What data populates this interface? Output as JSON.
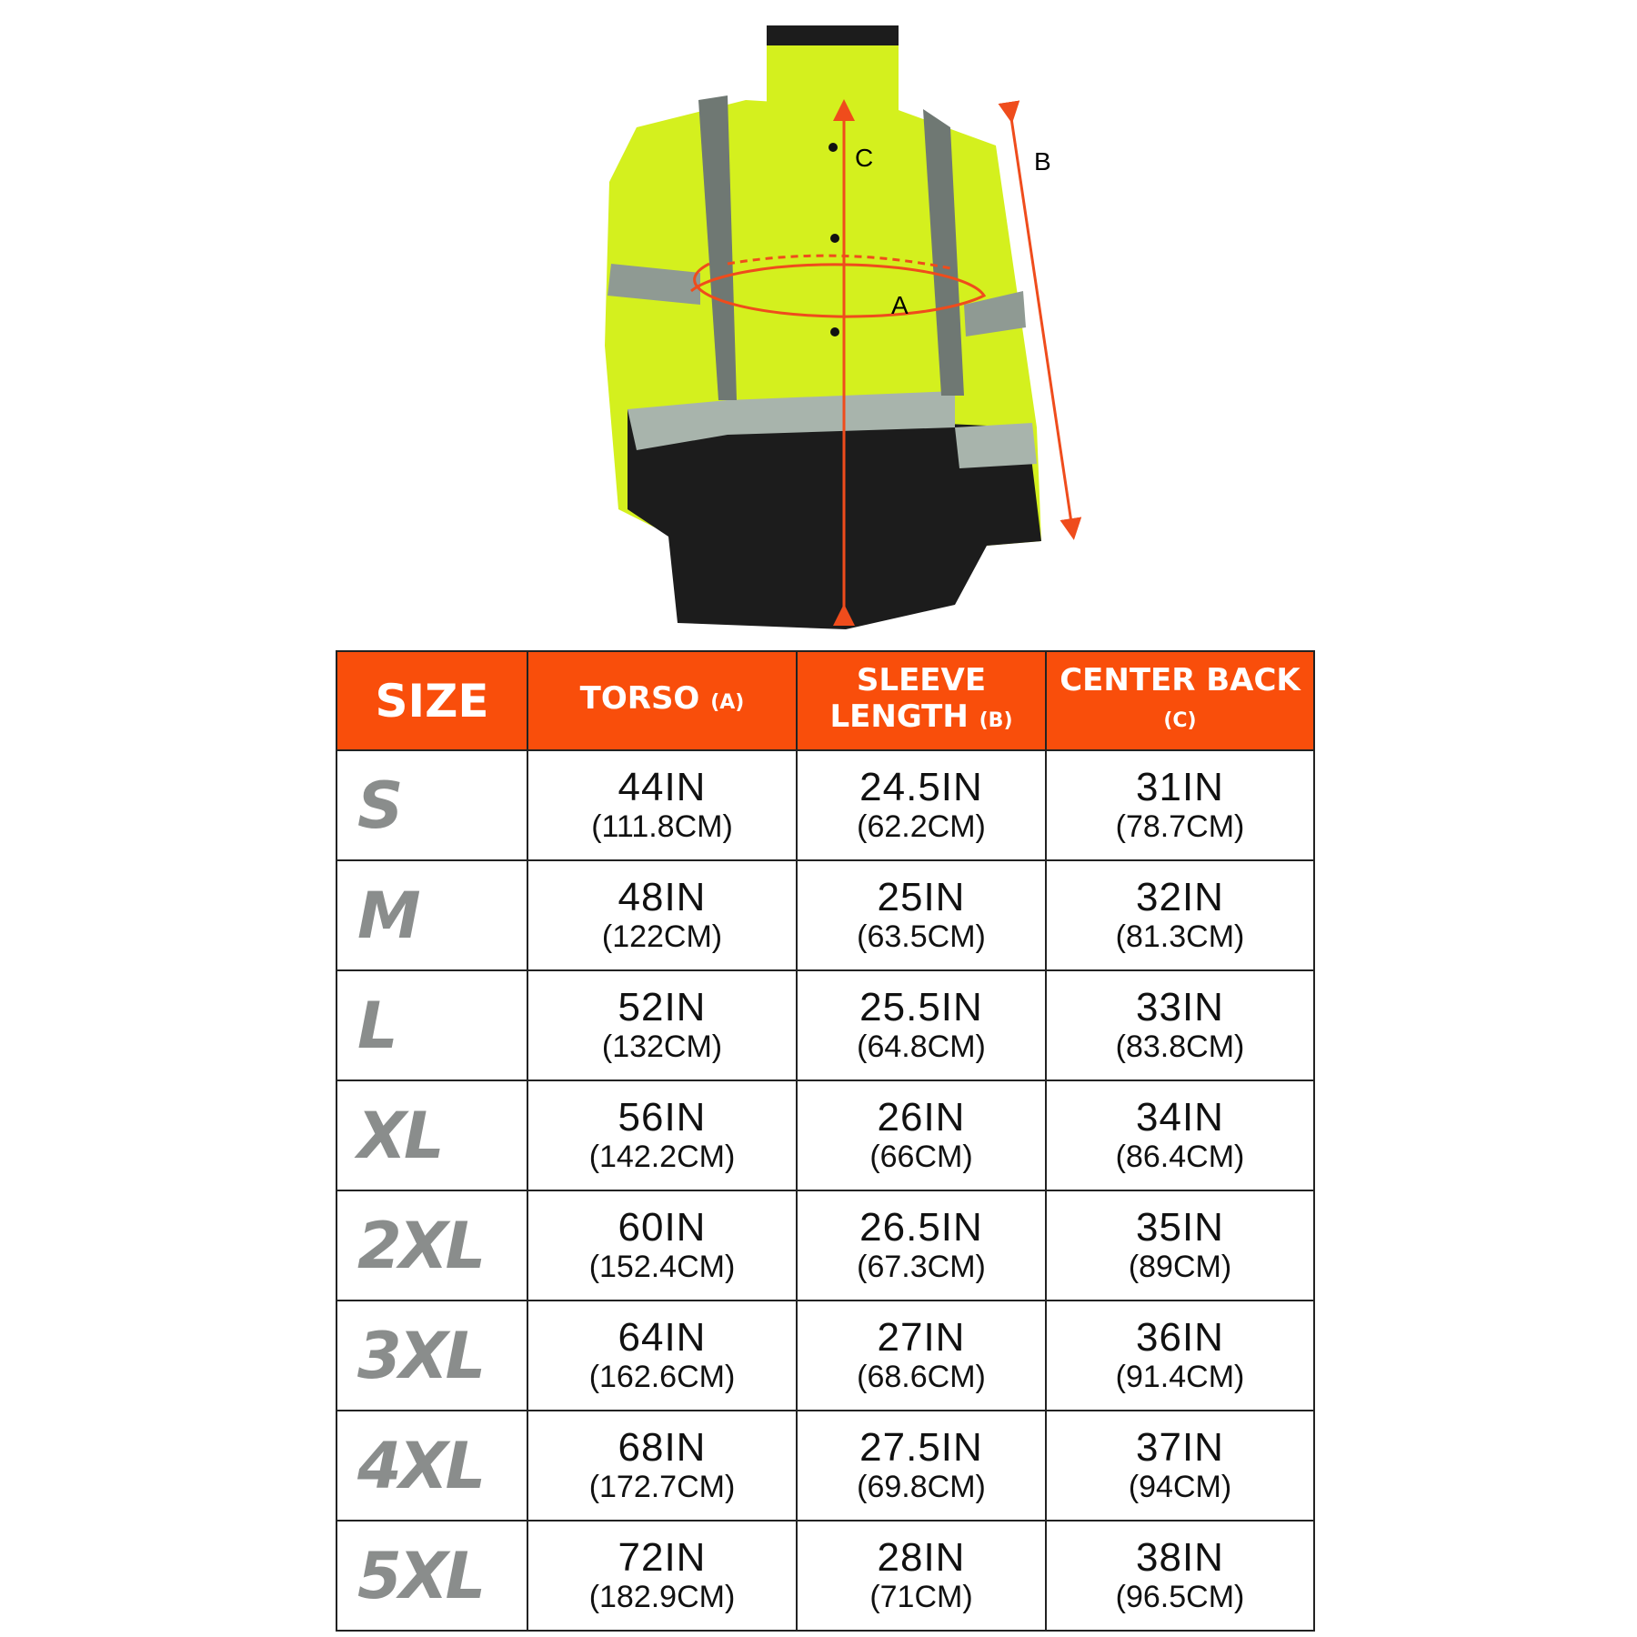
{
  "diagram": {
    "label_a": "A",
    "label_b": "B",
    "label_c": "C",
    "colors": {
      "hi_vis": "#d4f01e",
      "black": "#1c1c1c",
      "reflective": "#8f9a93",
      "arrow": "#ef4c1c"
    }
  },
  "table": {
    "header_color": "#f94e0b",
    "headers": [
      {
        "main": "SIZE",
        "sub": ""
      },
      {
        "main": "TORSO",
        "sub": "(A)"
      },
      {
        "main": "SLEEVE LENGTH",
        "sub": "(B)"
      },
      {
        "main": "CENTER BACK",
        "sub": "(C)"
      }
    ],
    "rows": [
      {
        "size": "S",
        "torso": [
          "44IN",
          "(111.8CM)"
        ],
        "sleeve": [
          "24.5IN",
          "(62.2CM)"
        ],
        "back": [
          "31IN",
          "(78.7CM)"
        ]
      },
      {
        "size": "M",
        "torso": [
          "48IN",
          "(122CM)"
        ],
        "sleeve": [
          "25IN",
          "(63.5CM)"
        ],
        "back": [
          "32IN",
          "(81.3CM)"
        ]
      },
      {
        "size": "L",
        "torso": [
          "52IN",
          "(132CM)"
        ],
        "sleeve": [
          "25.5IN",
          "(64.8CM)"
        ],
        "back": [
          "33IN",
          "(83.8CM)"
        ]
      },
      {
        "size": "XL",
        "torso": [
          "56IN",
          "(142.2CM)"
        ],
        "sleeve": [
          "26IN",
          "(66CM)"
        ],
        "back": [
          "34IN",
          "(86.4CM)"
        ]
      },
      {
        "size": "2XL",
        "torso": [
          "60IN",
          "(152.4CM)"
        ],
        "sleeve": [
          "26.5IN",
          "(67.3CM)"
        ],
        "back": [
          "35IN",
          "(89CM)"
        ]
      },
      {
        "size": "3XL",
        "torso": [
          "64IN",
          "(162.6CM)"
        ],
        "sleeve": [
          "27IN",
          "(68.6CM)"
        ],
        "back": [
          "36IN",
          "(91.4CM)"
        ]
      },
      {
        "size": "4XL",
        "torso": [
          "68IN",
          "(172.7CM)"
        ],
        "sleeve": [
          "27.5IN",
          "(69.8CM)"
        ],
        "back": [
          "37IN",
          "(94CM)"
        ]
      },
      {
        "size": "5XL",
        "torso": [
          "72IN",
          "(182.9CM)"
        ],
        "sleeve": [
          "28IN",
          "(71CM)"
        ],
        "back": [
          "38IN",
          "(96.5CM)"
        ]
      }
    ]
  }
}
